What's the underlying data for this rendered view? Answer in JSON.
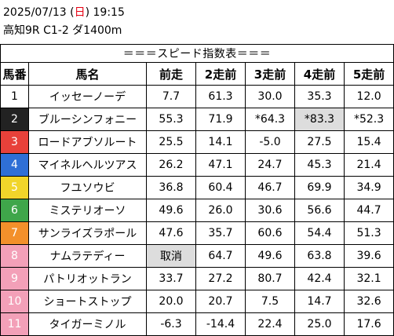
{
  "header": {
    "date_prefix": "2025/07/13 (",
    "dow": "日",
    "date_suffix": ") 19:15",
    "race": "高知9R C1-2 ダ1400m"
  },
  "table": {
    "banner": "＝＝＝スピード指数表＝＝＝",
    "columns": [
      "馬番",
      "馬名",
      "前走",
      "2走前",
      "3走前",
      "4走前",
      "5走前"
    ],
    "colors": {
      "1": {
        "bg": "#ffffff",
        "fg": "#000000"
      },
      "2": {
        "bg": "#222222",
        "fg": "#ffffff"
      },
      "3": {
        "bg": "#e8413a",
        "fg": "#ffffff"
      },
      "4": {
        "bg": "#2f6fd6",
        "fg": "#ffffff"
      },
      "5": {
        "bg": "#f1d52a",
        "fg": "#ffffff"
      },
      "6": {
        "bg": "#3fa64a",
        "fg": "#ffffff"
      },
      "7": {
        "bg": "#f3902b",
        "fg": "#ffffff"
      },
      "8": {
        "bg": "#f3a0b8",
        "fg": "#ffffff"
      },
      "highlight": "#dddddd"
    },
    "rows": [
      {
        "num": "1",
        "name": "イッセーノーデ",
        "vals": [
          "7.7",
          "61.3",
          "30.0",
          "35.3",
          "12.0"
        ],
        "hl": []
      },
      {
        "num": "2",
        "name": "ブルーシンフォニー",
        "vals": [
          "55.3",
          "71.9",
          "*64.3",
          "*83.3",
          "*52.3"
        ],
        "hl": [
          3
        ]
      },
      {
        "num": "3",
        "name": "ロードアブソルート",
        "vals": [
          "25.5",
          "14.1",
          "-5.0",
          "27.5",
          "15.4"
        ],
        "hl": []
      },
      {
        "num": "4",
        "name": "マイネルヘルツアス",
        "vals": [
          "26.2",
          "47.1",
          "24.7",
          "45.3",
          "21.4"
        ],
        "hl": []
      },
      {
        "num": "5",
        "name": "フユソウビ",
        "vals": [
          "36.8",
          "60.4",
          "46.7",
          "69.9",
          "34.9"
        ],
        "hl": []
      },
      {
        "num": "6",
        "name": "ミステリオーソ",
        "vals": [
          "49.6",
          "26.0",
          "30.6",
          "56.6",
          "44.7"
        ],
        "hl": []
      },
      {
        "num": "7",
        "name": "サンライズラポール",
        "vals": [
          "47.6",
          "35.7",
          "60.6",
          "54.4",
          "51.3"
        ],
        "hl": []
      },
      {
        "num": "8",
        "name": "ナムラテディー",
        "vals": [
          "取消",
          "64.7",
          "49.6",
          "63.8",
          "39.6"
        ],
        "hl": [
          0
        ]
      },
      {
        "num": "9",
        "name": "パトリオットラン",
        "vals": [
          "33.7",
          "27.2",
          "80.7",
          "42.4",
          "32.1"
        ],
        "hl": []
      },
      {
        "num": "10",
        "name": "ショートストップ",
        "vals": [
          "20.0",
          "20.7",
          "7.5",
          "14.7",
          "32.6"
        ],
        "hl": []
      },
      {
        "num": "11",
        "name": "タイガーミノル",
        "vals": [
          "-6.3",
          "-14.4",
          "22.4",
          "25.0",
          "17.6"
        ],
        "hl": []
      }
    ]
  }
}
